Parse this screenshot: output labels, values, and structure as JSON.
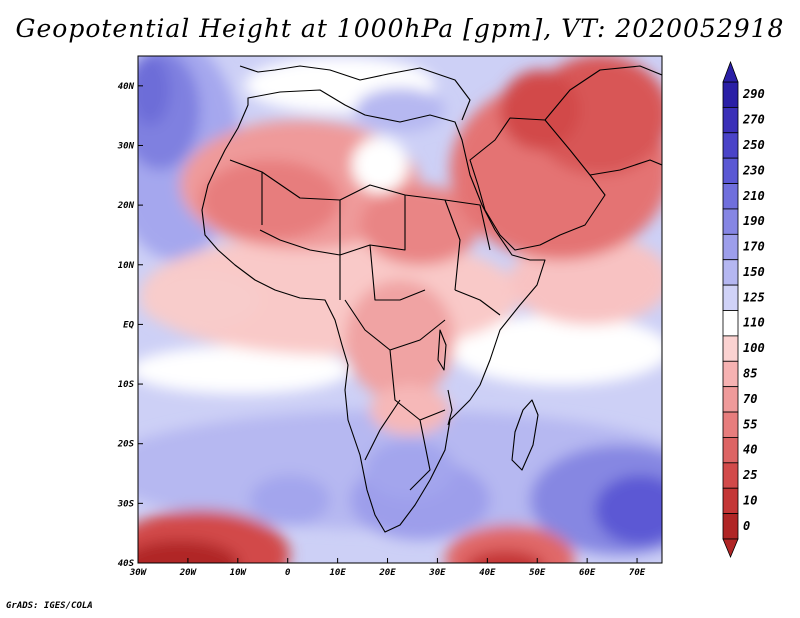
{
  "title": "Geopotential Height at 1000hPa [gpm], VT: 2020052918",
  "credit": "GrADS: IGES/COLA",
  "map": {
    "region": "Africa",
    "lon_range": [
      -30,
      75
    ],
    "lat_range": [
      -40,
      45
    ],
    "lon_ticks": [
      {
        "value": -30,
        "label": "30W"
      },
      {
        "value": -20,
        "label": "20W"
      },
      {
        "value": -10,
        "label": "10W"
      },
      {
        "value": 0,
        "label": "0"
      },
      {
        "value": 10,
        "label": "10E"
      },
      {
        "value": 20,
        "label": "20E"
      },
      {
        "value": 30,
        "label": "30E"
      },
      {
        "value": 40,
        "label": "40E"
      },
      {
        "value": 50,
        "label": "50E"
      },
      {
        "value": 60,
        "label": "60E"
      },
      {
        "value": 70,
        "label": "70E"
      }
    ],
    "lat_ticks": [
      {
        "value": 40,
        "label": "40N"
      },
      {
        "value": 30,
        "label": "30N"
      },
      {
        "value": 20,
        "label": "20N"
      },
      {
        "value": 10,
        "label": "10N"
      },
      {
        "value": 0,
        "label": "EQ"
      },
      {
        "value": -10,
        "label": "10S"
      },
      {
        "value": -20,
        "label": "20S"
      },
      {
        "value": -30,
        "label": "30S"
      },
      {
        "value": -40,
        "label": "40S"
      }
    ]
  },
  "colorbar": {
    "levels": [
      {
        "label": "290",
        "color": "#2a1fa6"
      },
      {
        "label": "270",
        "color": "#3b30b8"
      },
      {
        "label": "250",
        "color": "#4a43c8"
      },
      {
        "label": "230",
        "color": "#5b58d4"
      },
      {
        "label": "210",
        "color": "#706fdd"
      },
      {
        "label": "190",
        "color": "#8686e4"
      },
      {
        "label": "170",
        "color": "#9d9eeb"
      },
      {
        "label": "150",
        "color": "#b5b7f1"
      },
      {
        "label": "125",
        "color": "#d0d2f7"
      },
      {
        "label": "110",
        "color": "#ffffff"
      },
      {
        "label": "100",
        "color": "#fbd2d1"
      },
      {
        "label": "85",
        "color": "#f6b2b2"
      },
      {
        "label": "70",
        "color": "#ef9a9a"
      },
      {
        "label": "55",
        "color": "#e77d7d"
      },
      {
        "label": "40",
        "color": "#dd6464"
      },
      {
        "label": "25",
        "color": "#d24a4a"
      },
      {
        "label": "10",
        "color": "#c43636"
      },
      {
        "label": "0",
        "color": "#b02525"
      }
    ]
  }
}
